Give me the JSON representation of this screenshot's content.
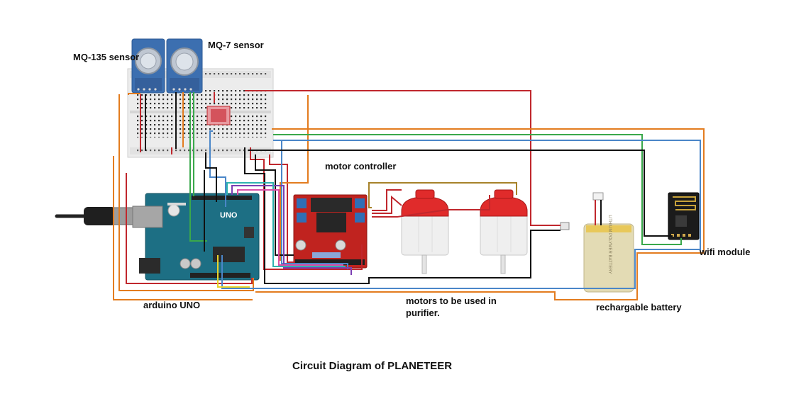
{
  "labels": {
    "mq135": "MQ-135 sensor",
    "mq7": "MQ-7 sensor",
    "motor_controller": "motor controller",
    "wifi_module": "wifi module",
    "arduino": "arduino UNO",
    "motors_line1": "motors to be used in",
    "motors_line2": "purifier.",
    "battery": "rechargable battery"
  },
  "title": "Circuit Diagram of PLANETEER",
  "silkscreen": {
    "uno": "UNO",
    "battery": "LITHIUM POLYMER BATTERY"
  },
  "colors": {
    "red_wire": "#c0272d",
    "orange_wire": "#e37c1f",
    "green_wire": "#3aa84b",
    "blue_wire": "#4a86c8",
    "black_wire": "#111111",
    "yellow_wire": "#e8d42a",
    "brown_wire": "#a7822a",
    "arduino_board": "#1d6f84",
    "motor_driver": "#c0231f",
    "sensor_board": "#3c6fb0",
    "motor_cap": "#e02b2b",
    "battery_body": "#e3dbb4"
  }
}
